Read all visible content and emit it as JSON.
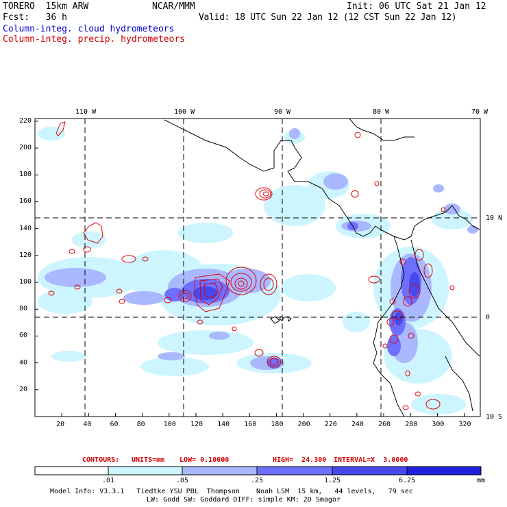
{
  "header": {
    "model": "TORERO  15km ARW",
    "org": "NCAR/MMM",
    "init": "Init: 06 UTC Sat 21 Jan 12",
    "fcst": "Fcst:   36 h",
    "valid": "Valid: 18 UTC Sun 22 Jan 12 (12 CST Sun 22 Jan 12)",
    "field1": "Column-integ. cloud hydrometeors",
    "field2": "Column-integ. precip. hydrometeors"
  },
  "colors": {
    "field1": "#0000cc",
    "field2": "#d00000",
    "precip_contour": "#e00000",
    "coast": "#000000",
    "fill_1": "#ccf5ff",
    "fill_2": "#aab8ff",
    "fill_3": "#6f6fff",
    "fill_4": "#4848f0",
    "fill_5": "#2020e0"
  },
  "map": {
    "lon_labels_top": [
      "110 W",
      "100 W",
      "90 W",
      "80 W",
      "70 W"
    ],
    "lat_labels_right": [
      "10 N",
      "0",
      "10 S"
    ],
    "x_ticks": [
      "20",
      "40",
      "60",
      "80",
      "100",
      "120",
      "140",
      "160",
      "180",
      "200",
      "220",
      "240",
      "260",
      "280",
      "300",
      "320"
    ],
    "y_ticks": [
      "20",
      "40",
      "60",
      "80",
      "100",
      "120",
      "140",
      "160",
      "180",
      "200",
      "220"
    ],
    "icons": [
      "cloud-fill-shading",
      "precip-contours",
      "coastline"
    ]
  },
  "contours_info": {
    "label": "CONTOURS:",
    "units": "UNITS=mm",
    "low": "LOW= 0.10000",
    "high": "HIGH=  24.300",
    "interval": "INTERVAL=X  3.0000"
  },
  "colorbar": {
    "labels": [
      ".01",
      ".05",
      ".25",
      "1.25",
      "6.25"
    ],
    "units": "mm"
  },
  "footer": {
    "line1": "Model Info: V3.3.1   Tiedtke YSU PBL  Thompson    Noah LSM  15 km,   44 levels,   79 sec",
    "line2": "LW: Godd SW: Goddard DIFF: simple KM: 2D Smagor"
  }
}
